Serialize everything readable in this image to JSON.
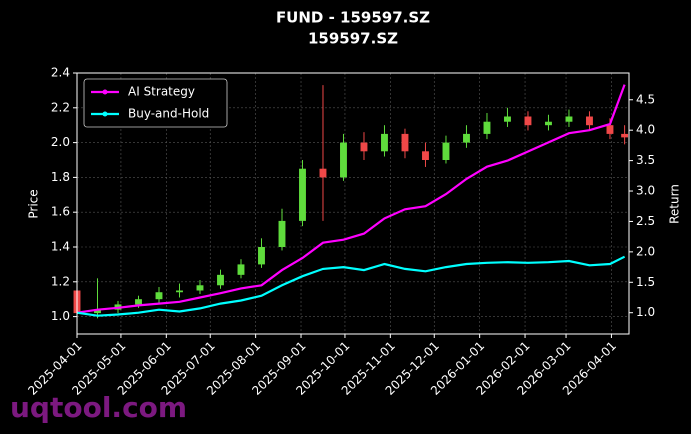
{
  "chart_data": {
    "type": "candlestick",
    "title": "FUND - 159597.SZ",
    "subtitle": "159597.SZ",
    "ylabel": "Price",
    "y2label": "Return",
    "watermark": "uqtool.com",
    "x": [
      "2025-04-01",
      "2025-04-15",
      "2025-04-29",
      "2025-05-13",
      "2025-05-27",
      "2025-06-10",
      "2025-06-24",
      "2025-07-08",
      "2025-07-22",
      "2025-08-05",
      "2025-08-19",
      "2025-09-02",
      "2025-09-16",
      "2025-09-30",
      "2025-10-14",
      "2025-10-28",
      "2025-11-11",
      "2025-11-25",
      "2025-12-09",
      "2025-12-23",
      "2026-01-06",
      "2026-01-20",
      "2026-02-03",
      "2026-02-17",
      "2026-03-03",
      "2026-03-17",
      "2026-03-31",
      "2026-04-10"
    ],
    "open": [
      1.15,
      1.02,
      1.04,
      1.07,
      1.1,
      1.14,
      1.15,
      1.18,
      1.24,
      1.3,
      1.4,
      1.55,
      1.85,
      1.8,
      2.0,
      1.95,
      2.05,
      1.95,
      1.9,
      2.0,
      2.05,
      2.12,
      2.15,
      2.1,
      2.12,
      2.15,
      2.1,
      2.05
    ],
    "high": [
      1.18,
      1.22,
      1.09,
      1.12,
      1.17,
      1.19,
      1.21,
      1.27,
      1.33,
      1.45,
      1.62,
      1.9,
      2.33,
      2.05,
      2.06,
      2.1,
      2.08,
      2.0,
      2.04,
      2.1,
      2.17,
      2.2,
      2.18,
      2.16,
      2.19,
      2.18,
      2.14,
      2.1
    ],
    "low": [
      0.98,
      0.99,
      1.02,
      1.05,
      1.08,
      1.11,
      1.13,
      1.16,
      1.22,
      1.28,
      1.38,
      1.52,
      1.55,
      1.78,
      1.9,
      1.92,
      1.91,
      1.86,
      1.88,
      1.97,
      2.02,
      2.09,
      2.07,
      2.07,
      2.09,
      2.07,
      2.02,
      1.99
    ],
    "close": [
      1.02,
      1.04,
      1.07,
      1.1,
      1.14,
      1.15,
      1.18,
      1.24,
      1.3,
      1.4,
      1.55,
      1.85,
      1.8,
      2.0,
      1.95,
      2.05,
      1.95,
      1.9,
      2.0,
      2.05,
      2.12,
      2.15,
      2.1,
      2.12,
      2.15,
      2.1,
      2.05,
      2.03
    ],
    "up_color": "#5fdc3c",
    "down_color": "#f04848",
    "series": [
      {
        "name": "AI Strategy",
        "color": "#ff00ff",
        "axis": "y2",
        "values": [
          1.0,
          1.05,
          1.08,
          1.12,
          1.15,
          1.18,
          1.25,
          1.32,
          1.4,
          1.45,
          1.7,
          1.9,
          2.15,
          2.2,
          2.3,
          2.55,
          2.7,
          2.75,
          2.95,
          3.2,
          3.4,
          3.5,
          3.65,
          3.8,
          3.95,
          4.0,
          4.1,
          4.75
        ]
      },
      {
        "name": "Buy-and-Hold",
        "color": "#00ffff",
        "axis": "y2",
        "values": [
          1.0,
          0.95,
          0.97,
          1.0,
          1.05,
          1.02,
          1.07,
          1.15,
          1.2,
          1.28,
          1.45,
          1.6,
          1.72,
          1.75,
          1.7,
          1.8,
          1.72,
          1.68,
          1.75,
          1.8,
          1.82,
          1.83,
          1.82,
          1.83,
          1.85,
          1.78,
          1.8,
          1.92
        ]
      }
    ],
    "xlim": [
      "2025-04-01",
      "2026-04-13"
    ],
    "xticks": [
      "2025-04-01",
      "2025-05-01",
      "2025-06-01",
      "2025-07-01",
      "2025-08-01",
      "2025-09-01",
      "2025-10-01",
      "2025-11-01",
      "2025-12-01",
      "2026-01-01",
      "2026-02-01",
      "2026-03-01",
      "2026-04-01"
    ],
    "ylim": [
      0.9,
      2.4
    ],
    "yticks": [
      {
        "value": 1,
        "label": "1.0"
      },
      1.2,
      1.4,
      1.6,
      1.8,
      {
        "value": 2,
        "label": "2.0"
      },
      2.2,
      2.4
    ],
    "y2lim": [
      0.65,
      4.94
    ],
    "y2ticks": [
      {
        "value": 1,
        "label": "1.0"
      },
      1.5,
      {
        "value": 2,
        "label": "2.0"
      },
      2.5,
      {
        "value": 3,
        "label": "3.0"
      },
      3.5,
      {
        "value": 4,
        "label": "4.0"
      },
      4.5
    ],
    "grid": true,
    "legend": "upper left"
  }
}
